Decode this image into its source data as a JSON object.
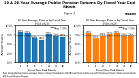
{
  "title": "10 & 20-Year Average Public Pension Returns By Fiscal Year End Month",
  "subtitle": "Figure 2",
  "annotations": [
    "Note: Unweighted geometric averages. Source: Reason Foundation's 2023 Annual Pension Solvency and Performance Report. Values extracted from ACFR and Valuation Reports.",
    "reason"
  ],
  "chart_data": [
    {
      "type": "bar",
      "title": "10-Year Average Returns by Fiscal Year",
      "subtitle": "(2013-2022)",
      "x_label": "Fiscal Year End Month",
      "y_label": "Average Returns",
      "categories": [
        "3",
        "4",
        "6",
        "7",
        "8",
        "9",
        "12"
      ],
      "values": [
        8.08,
        7.87,
        6.62,
        6.18,
        7.52,
        7.06,
        6.89
      ],
      "value_labels": [
        "8.08%",
        "7.87%",
        "6.62%",
        "6.18%",
        "7.52%",
        "7.06%",
        "6.89%"
      ],
      "data_labels": true,
      "reference_line": {
        "value": 7.19,
        "label": "Avg. 7.19%"
      },
      "legend": "upper right",
      "grid": false,
      "ylim": [
        0,
        10
      ],
      "yticks": [
        {
          "value": 0.0,
          "label": "0.0%"
        },
        {
          "value": 2.5,
          "label": "2.5%"
        },
        {
          "value": 5.0,
          "label": "5.0%"
        },
        {
          "value": 7.5,
          "label": "7.5%"
        },
        {
          "value": 10.0,
          "label": "10.0%"
        }
      ]
    },
    {
      "type": "bar",
      "title": "20-Year Average Returns by Fiscal Year",
      "subtitle": "(2003-2022)",
      "x_label": "Fiscal Year End Month",
      "y_label": "Average Returns",
      "categories": [
        "3",
        "4",
        "6",
        "7",
        "8",
        "9",
        "12"
      ],
      "values": [
        7.89,
        6.52,
        7.21,
        7.54,
        7.88,
        7.05,
        7.05
      ],
      "value_labels": [
        "7.89%",
        "6.52%",
        "7.21%",
        "7.54%",
        "7.88%",
        "7.05%",
        "7.05%"
      ],
      "data_labels": true,
      "reference_line": {
        "value": 7.19,
        "label": "Avg. 7.19%"
      },
      "legend": "upper right",
      "grid": false,
      "ylim": [
        0,
        10
      ],
      "yticks": [
        {
          "value": 0.0,
          "label": "0.0%"
        },
        {
          "value": 2.5,
          "label": "2.5%"
        },
        {
          "value": 5.0,
          "label": "5.0%"
        },
        {
          "value": 7.5,
          "label": "7.5%"
        },
        {
          "value": 10.0,
          "label": "10.0%"
        }
      ]
    }
  ]
}
